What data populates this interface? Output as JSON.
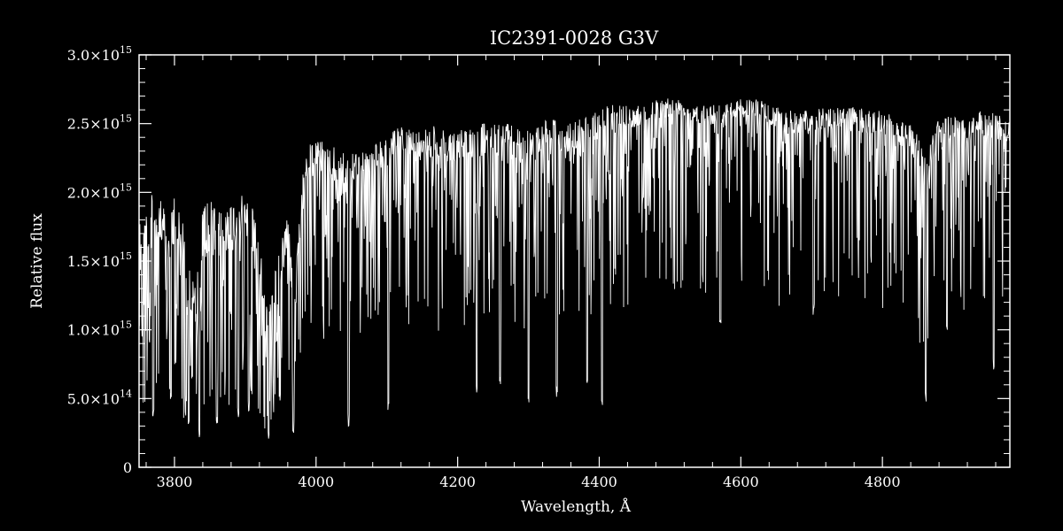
{
  "chart_data": {
    "type": "line",
    "title": "IC2391-0028   G3V",
    "xlabel": "Wavelength, Å",
    "ylabel": "Relative flux",
    "xlim": [
      3750,
      4980
    ],
    "ylim": [
      0,
      3000000000000000.0
    ],
    "x_ticks": [
      3800,
      4000,
      4200,
      4400,
      4600,
      4800
    ],
    "x_tick_labels": [
      "3800",
      "4000",
      "4200",
      "4400",
      "4600",
      "4800"
    ],
    "y_ticks": [
      0,
      500000000000000.0,
      1000000000000000.0,
      1500000000000000.0,
      2000000000000000.0,
      2500000000000000.0,
      3000000000000000.0
    ],
    "y_tick_labels": [
      {
        "mantissa": "0",
        "exp": ""
      },
      {
        "mantissa": "5.0×10",
        "exp": "14"
      },
      {
        "mantissa": "1.0×10",
        "exp": "15"
      },
      {
        "mantissa": "1.5×10",
        "exp": "15"
      },
      {
        "mantissa": "2.0×10",
        "exp": "15"
      },
      {
        "mantissa": "2.5×10",
        "exp": "15"
      },
      {
        "mantissa": "3.0×10",
        "exp": "15"
      }
    ],
    "grid": false,
    "colors": {
      "background": "#000000",
      "foreground": "#ffffff"
    },
    "series": [
      {
        "x": [
          3750,
          3760,
          3770,
          3780,
          3790,
          3800,
          3810,
          3820,
          3830,
          3840,
          3850,
          3860,
          3870,
          3880,
          3890,
          3900,
          3910,
          3920,
          3930,
          3940,
          3950,
          3960,
          3970,
          3980,
          3990,
          4000,
          4020,
          4040,
          4060,
          4080,
          4100,
          4120,
          4140,
          4160,
          4180,
          4200,
          4220,
          4240,
          4260,
          4280,
          4300,
          4320,
          4340,
          4360,
          4380,
          4400,
          4420,
          4440,
          4460,
          4480,
          4500,
          4520,
          4540,
          4560,
          4580,
          4600,
          4620,
          4640,
          4660,
          4680,
          4700,
          4720,
          4740,
          4760,
          4780,
          4800,
          4820,
          4840,
          4850,
          4860,
          4870,
          4880,
          4900,
          4920,
          4940,
          4960,
          4980
        ],
        "upper": [
          1750000000000000.0,
          1950000000000000.0,
          2000000000000000.0,
          2050000000000000.0,
          1700000000000000.0,
          2000000000000000.0,
          1850000000000000.0,
          1500000000000000.0,
          1300000000000000.0,
          1900000000000000.0,
          1950000000000000.0,
          1900000000000000.0,
          1850000000000000.0,
          1950000000000000.0,
          2000000000000000.0,
          2000000000000000.0,
          1950000000000000.0,
          1800000000000000.0,
          1200000000000000.0,
          1400000000000000.0,
          1600000000000000.0,
          1900000000000000.0,
          1300000000000000.0,
          2100000000000000.0,
          2350000000000000.0,
          2400000000000000.0,
          2350000000000000.0,
          2300000000000000.0,
          2300000000000000.0,
          2350000000000000.0,
          2400000000000000.0,
          2500000000000000.0,
          2450000000000000.0,
          2500000000000000.0,
          2450000000000000.0,
          2450000000000000.0,
          2500000000000000.0,
          2500000000000000.0,
          2500000000000000.0,
          2500000000000000.0,
          2450000000000000.0,
          2550000000000000.0,
          2550000000000000.0,
          2500000000000000.0,
          2550000000000000.0,
          2600000000000000.0,
          2650000000000000.0,
          2650000000000000.0,
          2650000000000000.0,
          2680000000000000.0,
          2700000000000000.0,
          2680000000000000.0,
          2650000000000000.0,
          2650000000000000.0,
          2650000000000000.0,
          2680000000000000.0,
          2680000000000000.0,
          2650000000000000.0,
          2600000000000000.0,
          2600000000000000.0,
          2600000000000000.0,
          2620000000000000.0,
          2620000000000000.0,
          2620000000000000.0,
          2600000000000000.0,
          2600000000000000.0,
          2550000000000000.0,
          2500000000000000.0,
          2450000000000000.0,
          2300000000000000.0,
          2400000000000000.0,
          2550000000000000.0,
          2550000000000000.0,
          2550000000000000.0,
          2600000000000000.0,
          2580000000000000.0,
          2550000000000000.0
        ],
        "lower": [
          700000000000000.0,
          800000000000000.0,
          800000000000000.0,
          900000000000000.0,
          800000000000000.0,
          900000000000000.0,
          700000000000000.0,
          500000000000000.0,
          400000000000000.0,
          700000000000000.0,
          800000000000000.0,
          800000000000000.0,
          800000000000000.0,
          800000000000000.0,
          900000000000000.0,
          1000000000000000.0,
          800000000000000.0,
          700000000000000.0,
          400000000000000.0,
          600000000000000.0,
          800000000000000.0,
          800000000000000.0,
          600000000000000.0,
          1200000000000000.0,
          1600000000000000.0,
          1700000000000000.0,
          1600000000000000.0,
          1600000000000000.0,
          1700000000000000.0,
          1700000000000000.0,
          1800000000000000.0,
          1900000000000000.0,
          1800000000000000.0,
          1800000000000000.0,
          1800000000000000.0,
          1800000000000000.0,
          1800000000000000.0,
          1800000000000000.0,
          1800000000000000.0,
          1800000000000000.0,
          1700000000000000.0,
          1800000000000000.0,
          1800000000000000.0,
          1700000000000000.0,
          1800000000000000.0,
          2000000000000000.0,
          2100000000000000.0,
          2100000000000000.0,
          2200000000000000.0,
          2300000000000000.0,
          2300000000000000.0,
          2300000000000000.0,
          2200000000000000.0,
          2200000000000000.0,
          2200000000000000.0,
          2300000000000000.0,
          2300000000000000.0,
          2200000000000000.0,
          2100000000000000.0,
          2100000000000000.0,
          2100000000000000.0,
          2200000000000000.0,
          2200000000000000.0,
          2200000000000000.0,
          2100000000000000.0,
          2100000000000000.0,
          2000000000000000.0,
          1900000000000000.0,
          1700000000000000.0,
          1200000000000000.0,
          1700000000000000.0,
          2000000000000000.0,
          2000000000000000.0,
          2000000000000000.0,
          2100000000000000.0,
          2000000000000000.0,
          2000000000000000.0
        ],
        "deep_lines": [
          {
            "x": 3770,
            "y": 350000000000000.0
          },
          {
            "x": 3795,
            "y": 450000000000000.0
          },
          {
            "x": 3820,
            "y": 250000000000000.0
          },
          {
            "x": 3835,
            "y": 200000000000000.0
          },
          {
            "x": 3860,
            "y": 300000000000000.0
          },
          {
            "x": 3890,
            "y": 350000000000000.0
          },
          {
            "x": 3905,
            "y": 400000000000000.0
          },
          {
            "x": 3933,
            "y": 200000000000000.0
          },
          {
            "x": 3968,
            "y": 250000000000000.0
          },
          {
            "x": 4046,
            "y": 300000000000000.0
          },
          {
            "x": 4102,
            "y": 400000000000000.0
          },
          {
            "x": 4227,
            "y": 500000000000000.0
          },
          {
            "x": 4260,
            "y": 600000000000000.0
          },
          {
            "x": 4300,
            "y": 450000000000000.0
          },
          {
            "x": 4340,
            "y": 500000000000000.0
          },
          {
            "x": 4383,
            "y": 600000000000000.0
          },
          {
            "x": 4404,
            "y": 450000000000000.0
          },
          {
            "x": 4571,
            "y": 1000000000000000.0
          },
          {
            "x": 4703,
            "y": 1100000000000000.0
          },
          {
            "x": 4861,
            "y": 450000000000000.0
          },
          {
            "x": 4891,
            "y": 1000000000000000.0
          },
          {
            "x": 4957,
            "y": 700000000000000.0
          }
        ]
      }
    ]
  }
}
